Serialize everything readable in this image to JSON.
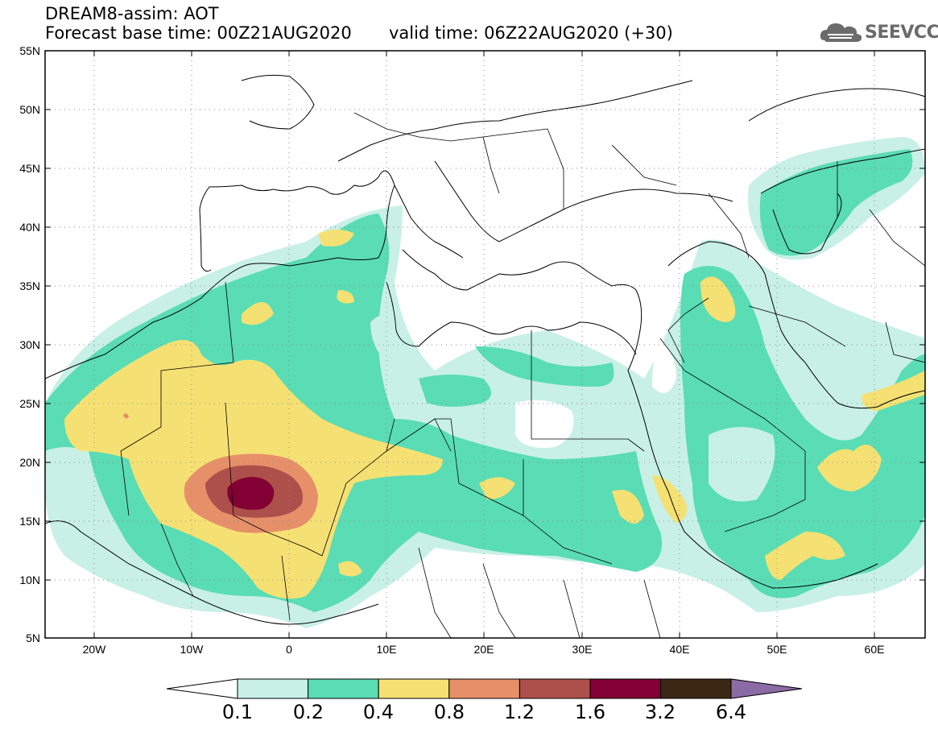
{
  "header": {
    "title_line1": "DREAM8-assim: AOT",
    "title_line2": "Forecast base time: 00Z21AUG2020",
    "valid_time": "valid time: 06Z22AUG2020 (+30)",
    "logo_text": "SEEVCCC"
  },
  "map": {
    "lon_range": [
      -25,
      65
    ],
    "lat_range": [
      5,
      55
    ],
    "lat_labels": [
      "55N",
      "50N",
      "45N",
      "40N",
      "35N",
      "30N",
      "25N",
      "20N",
      "15N",
      "10N",
      "5N"
    ],
    "lon_labels": [
      "20W",
      "10W",
      "0",
      "10E",
      "20E",
      "30E",
      "40E",
      "50E",
      "60E"
    ]
  },
  "colorbar": {
    "levels": [
      "0.1",
      "0.2",
      "0.4",
      "0.8",
      "1.2",
      "1.6",
      "3.2",
      "6.4"
    ],
    "colors": [
      "#c8f0e6",
      "#5adcb4",
      "#f5e173",
      "#e6906a",
      "#ad4f4a",
      "#820033",
      "#3c2614",
      "#8b6ba6"
    ]
  }
}
